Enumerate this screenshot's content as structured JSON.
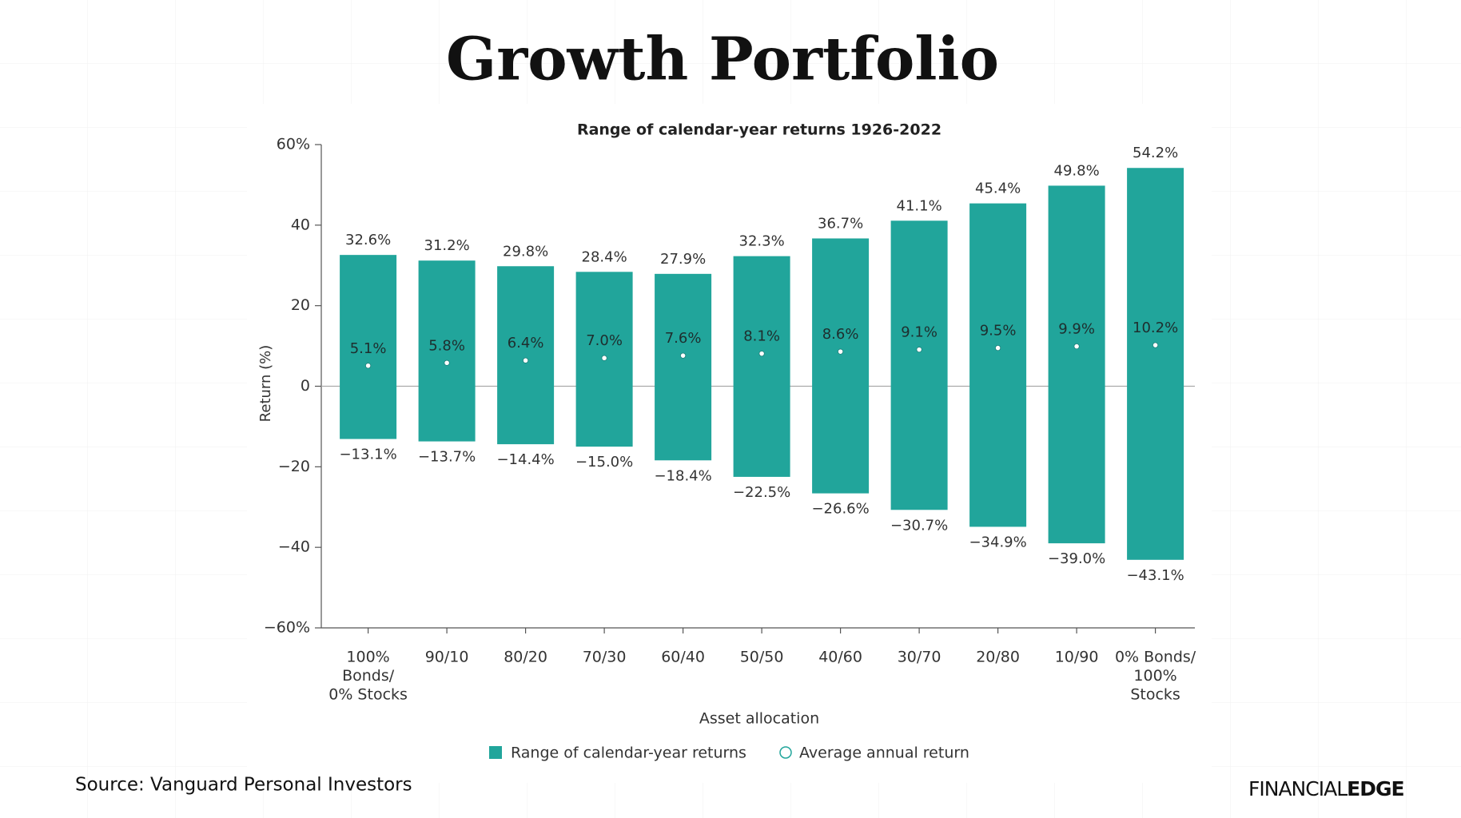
{
  "chart_data": {
    "type": "range-bar",
    "title": "Growth Portfolio",
    "subtitle": "Range of calendar-year returns 1926-2022",
    "y_label": "Return (%)",
    "x_label": "Asset allocation",
    "categories": [
      [
        "100%",
        "Bonds/",
        "0% Stocks"
      ],
      [
        "90/10"
      ],
      [
        "80/20"
      ],
      [
        "70/30"
      ],
      [
        "60/40"
      ],
      [
        "50/50"
      ],
      [
        "40/60"
      ],
      [
        "30/70"
      ],
      [
        "20/80"
      ],
      [
        "10/90"
      ],
      [
        "0% Bonds/",
        "100%",
        "Stocks"
      ]
    ],
    "ylim": [
      -60,
      60
    ],
    "yticks": [
      {
        "value": -60,
        "label": "−60%"
      },
      {
        "value": -40,
        "label": "−40"
      },
      {
        "value": -20,
        "label": "−20"
      },
      0,
      20,
      40,
      {
        "value": 60,
        "label": "60%"
      }
    ],
    "series": [
      {
        "name": "Range of calendar-year returns",
        "color": "#21a59b",
        "high": [
          32.6,
          31.2,
          29.8,
          28.4,
          27.9,
          32.3,
          36.7,
          41.1,
          45.4,
          49.8,
          54.2
        ],
        "high_labels": [
          "32.6%",
          "31.2%",
          "29.8%",
          "28.4%",
          "27.9%",
          "32.3%",
          "36.7%",
          "41.1%",
          "45.4%",
          "49.8%",
          "54.2%"
        ],
        "low": [
          -13.1,
          -13.7,
          -14.4,
          -15.0,
          -18.4,
          -22.5,
          -26.6,
          -30.7,
          -34.9,
          -39.0,
          -43.1
        ],
        "low_labels": [
          "−13.1%",
          "−13.7%",
          "−14.4%",
          "−15.0%",
          "−18.4%",
          "−22.5%",
          "−26.6%",
          "−30.7%",
          "−34.9%",
          "−39.0%",
          "−43.1%"
        ]
      },
      {
        "name": "Average annual return",
        "color": "#21a59b",
        "values": [
          5.1,
          5.8,
          6.4,
          7.0,
          7.6,
          8.1,
          8.6,
          9.1,
          9.5,
          9.9,
          10.2
        ],
        "value_labels": [
          "5.1%",
          "5.8%",
          "6.4%",
          "7.0%",
          "7.6%",
          "8.1%",
          "8.6%",
          "9.1%",
          "9.5%",
          "9.9%",
          "10.2%"
        ]
      }
    ]
  },
  "footer": {
    "source": "Source: Vanguard Personal Investors",
    "logo_left": "FINANCIAL",
    "logo_right": "EDGE"
  }
}
